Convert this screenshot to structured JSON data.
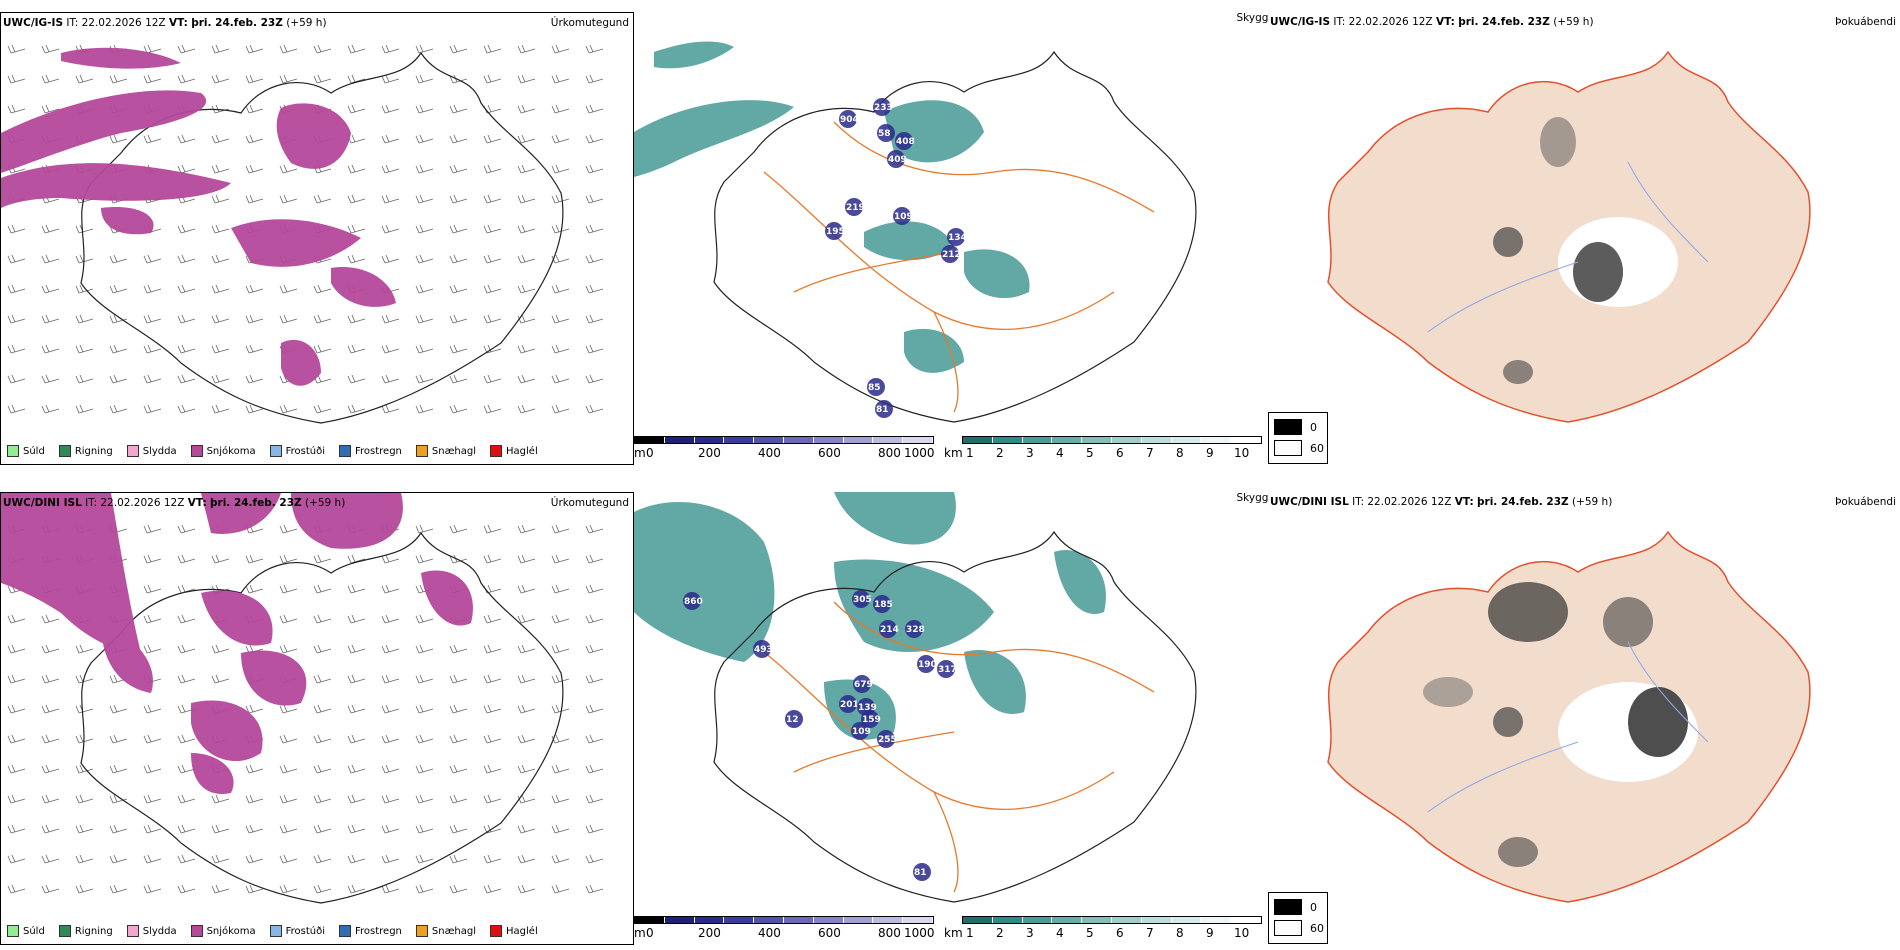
{
  "rows": [
    {
      "model": "UWC/IG-IS",
      "it_label": "IT:",
      "it_value": "22.02.2026 12Z",
      "vt_label": "VT:",
      "vt_value": "þri. 24.feb. 23Z",
      "lead": "(+59 h)",
      "precip_type_title": "Úrkomutegund",
      "visibility_title": "Skyggni",
      "fog_title": "Þokuábendi",
      "cloud_numbers": [
        "904",
        "233",
        "58",
        "408",
        "409",
        "219",
        "109",
        "195",
        "134",
        "212",
        "85",
        "81"
      ]
    },
    {
      "model": "UWC/DINI ISL",
      "it_label": "IT:",
      "it_value": "22.02.2026 12Z",
      "vt_label": "VT:",
      "vt_value": "þri. 24.feb. 23Z",
      "lead": "(+59 h)",
      "precip_type_title": "Úrkomutegund",
      "visibility_title": "Skyggni",
      "fog_title": "Þokuábendi",
      "cloud_numbers": [
        "860",
        "493",
        "305",
        "185",
        "214",
        "328",
        "190",
        "317",
        "679",
        "201",
        "139",
        "109",
        "159",
        "255",
        "12",
        "81"
      ]
    }
  ],
  "precip_legend": [
    {
      "label": "Súld",
      "color": "#90ee90"
    },
    {
      "label": "Rigning",
      "color": "#2e8b57"
    },
    {
      "label": "Slydda",
      "color": "#f4a6d0"
    },
    {
      "label": "Snjókoma",
      "color": "#b5489a"
    },
    {
      "label": "Frostúði",
      "color": "#87b7e8"
    },
    {
      "label": "Frostregn",
      "color": "#2f6db5"
    },
    {
      "label": "Snæhagl",
      "color": "#f0a020"
    },
    {
      "label": "Haglél",
      "color": "#e01010"
    }
  ],
  "cloudbase_scale": {
    "unit": "m",
    "ticks": [
      "0",
      "200",
      "400",
      "600",
      "800",
      "1000"
    ]
  },
  "visibility_scale": {
    "unit": "km",
    "ticks": [
      "1",
      "2",
      "3",
      "4",
      "5",
      "6",
      "7",
      "8",
      "9",
      "10"
    ]
  },
  "fog_scale": {
    "ticks": [
      "0",
      "60"
    ]
  },
  "colors": {
    "snow": "#b5489a",
    "teal": "#2e8b87",
    "navy": "#2a2a8c",
    "road": "#e8782a",
    "land": "#f2dccb",
    "fogroad": "#e4502e",
    "river": "#8fa8e8"
  }
}
